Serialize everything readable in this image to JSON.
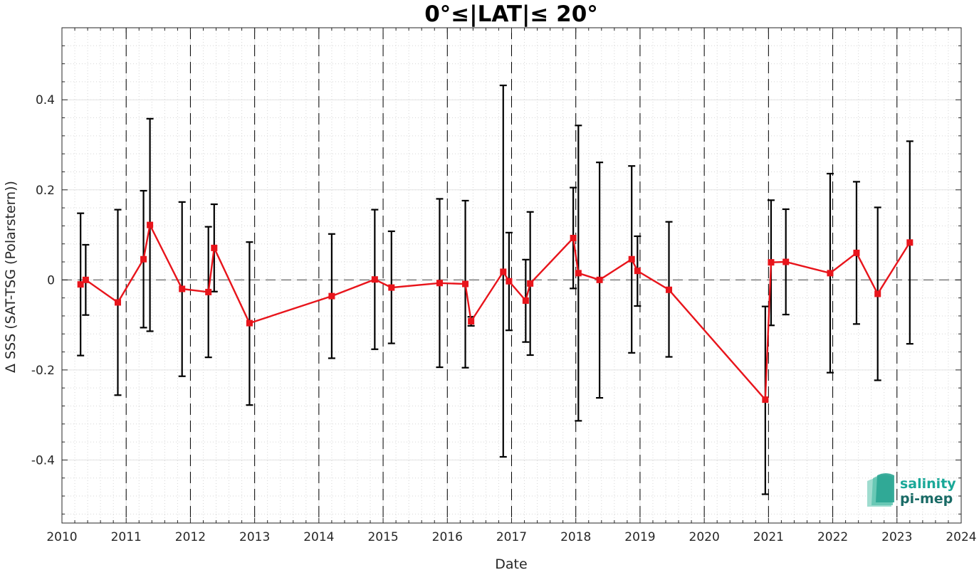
{
  "chart_data": {
    "type": "line",
    "title": "0°≤|LAT|≤ 20°",
    "xlabel": "Date",
    "ylabel": "Δ SSS (SAT-TSG (Polarstern))",
    "xlim": [
      2010,
      2024
    ],
    "ylim": [
      -0.54,
      0.56
    ],
    "x_ticks": [
      "2010",
      "2011",
      "2012",
      "2013",
      "2014",
      "2015",
      "2016",
      "2017",
      "2018",
      "2019",
      "2020",
      "2021",
      "2022",
      "2023",
      "2024"
    ],
    "y_ticks": [
      -0.4,
      -0.2,
      0,
      0.2,
      0.4
    ],
    "y_tick_labels": [
      "-0.4",
      "-0.2",
      "0",
      "0.2",
      "0.4"
    ],
    "grid": true,
    "year_markers": [
      2011,
      2012,
      2013,
      2014,
      2015,
      2016,
      2017,
      2018,
      2019,
      2020,
      2021,
      2022,
      2023
    ],
    "zero_line": 0,
    "series": [
      {
        "color": "#e8141b",
        "points": [
          {
            "x": 2010.29,
            "y": -0.01,
            "lo": -0.168,
            "hi": 0.148
          },
          {
            "x": 2010.37,
            "y": 0.0,
            "lo": -0.078,
            "hi": 0.078
          },
          {
            "x": 2010.87,
            "y": -0.05,
            "lo": -0.256,
            "hi": 0.156
          },
          {
            "x": 2011.27,
            "y": 0.046,
            "lo": -0.106,
            "hi": 0.198
          },
          {
            "x": 2011.37,
            "y": 0.122,
            "lo": -0.114,
            "hi": 0.358
          },
          {
            "x": 2011.87,
            "y": -0.02,
            "lo": -0.214,
            "hi": 0.173
          },
          {
            "x": 2012.28,
            "y": -0.027,
            "lo": -0.172,
            "hi": 0.118
          },
          {
            "x": 2012.37,
            "y": 0.071,
            "lo": -0.026,
            "hi": 0.168
          },
          {
            "x": 2012.92,
            "y": -0.096,
            "lo": -0.278,
            "hi": 0.084
          },
          {
            "x": 2014.2,
            "y": -0.036,
            "lo": -0.174,
            "hi": 0.102
          },
          {
            "x": 2014.87,
            "y": 0.001,
            "lo": -0.154,
            "hi": 0.156
          },
          {
            "x": 2015.13,
            "y": -0.017,
            "lo": -0.141,
            "hi": 0.108
          },
          {
            "x": 2015.88,
            "y": -0.007,
            "lo": -0.194,
            "hi": 0.18
          },
          {
            "x": 2016.28,
            "y": -0.009,
            "lo": -0.195,
            "hi": 0.176
          },
          {
            "x": 2016.37,
            "y": -0.092,
            "lo": -0.102,
            "hi": -0.082
          },
          {
            "x": 2016.87,
            "y": 0.018,
            "lo": -0.393,
            "hi": 0.432
          },
          {
            "x": 2016.96,
            "y": -0.003,
            "lo": -0.112,
            "hi": 0.105
          },
          {
            "x": 2017.22,
            "y": -0.046,
            "lo": -0.138,
            "hi": 0.045
          },
          {
            "x": 2017.29,
            "y": -0.008,
            "lo": -0.167,
            "hi": 0.151
          },
          {
            "x": 2017.96,
            "y": 0.093,
            "lo": -0.019,
            "hi": 0.205
          },
          {
            "x": 2018.04,
            "y": 0.015,
            "lo": -0.313,
            "hi": 0.343
          },
          {
            "x": 2018.37,
            "y": 0.0,
            "lo": -0.262,
            "hi": 0.261
          },
          {
            "x": 2018.87,
            "y": 0.046,
            "lo": -0.162,
            "hi": 0.253
          },
          {
            "x": 2018.96,
            "y": 0.02,
            "lo": -0.058,
            "hi": 0.097
          },
          {
            "x": 2019.45,
            "y": -0.022,
            "lo": -0.171,
            "hi": 0.129
          },
          {
            "x": 2020.95,
            "y": -0.266,
            "lo": -0.476,
            "hi": -0.059
          },
          {
            "x": 2021.04,
            "y": 0.039,
            "lo": -0.101,
            "hi": 0.177
          },
          {
            "x": 2021.27,
            "y": 0.04,
            "lo": -0.077,
            "hi": 0.157
          },
          {
            "x": 2021.96,
            "y": 0.015,
            "lo": -0.206,
            "hi": 0.236
          },
          {
            "x": 2022.37,
            "y": 0.06,
            "lo": -0.098,
            "hi": 0.218
          },
          {
            "x": 2022.7,
            "y": -0.031,
            "lo": -0.223,
            "hi": 0.161
          },
          {
            "x": 2023.2,
            "y": 0.083,
            "lo": -0.142,
            "hi": 0.308
          }
        ]
      }
    ]
  },
  "logo": {
    "line1": "salinity",
    "line2": "pi-mep",
    "color1": "#1aa898",
    "color2": "#1a6b66"
  }
}
